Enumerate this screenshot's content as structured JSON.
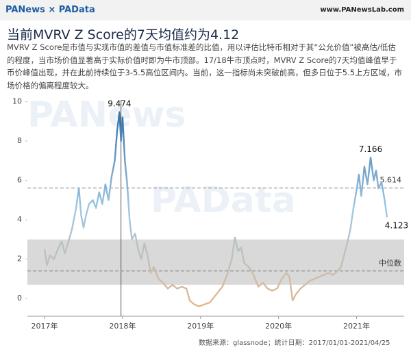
{
  "header": {
    "logo": "PANews × PAData",
    "site": "www.PANewsLab.com"
  },
  "chart_data": {
    "type": "line",
    "title": "当前MVRV Z Score的7天均值约为4.12",
    "subtitle": "MVRV Z Score是市值与实现市值的差值与市值标准差的比值，用以评估比特币相对于其“公允价值”被高估/低估的程度，当市场价值显著高于实际价值时即为牛市顶部。17/18牛市顶点时，MVRV Z Score的7天均值峰值早于币价峰值出现，并在此前持续位于3-5.5高位区间内。当前，这一指标尚未突破前高，但多日位于5.5上方区域，市场价格的偏离程度较大。",
    "watermarks": [
      "PANews",
      "PAData"
    ],
    "source": "数据来源：glassnode；统计日期：2017/01/01-2021/04/25",
    "x": [
      2017.0,
      2017.03,
      2017.07,
      2017.12,
      2017.17,
      2017.22,
      2017.26,
      2017.3,
      2017.35,
      2017.4,
      2017.44,
      2017.47,
      2017.5,
      2017.53,
      2017.57,
      2017.62,
      2017.66,
      2017.7,
      2017.74,
      2017.78,
      2017.82,
      2017.86,
      2017.9,
      2017.93,
      2017.96,
      2017.98,
      2018.0,
      2018.03,
      2018.06,
      2018.09,
      2018.12,
      2018.16,
      2018.2,
      2018.24,
      2018.28,
      2018.32,
      2018.36,
      2018.4,
      2018.46,
      2018.52,
      2018.58,
      2018.64,
      2018.7,
      2018.76,
      2018.82,
      2018.86,
      2018.92,
      2018.98,
      2019.05,
      2019.12,
      2019.2,
      2019.28,
      2019.34,
      2019.4,
      2019.44,
      2019.48,
      2019.52,
      2019.56,
      2019.62,
      2019.68,
      2019.74,
      2019.8,
      2019.86,
      2019.92,
      2019.98,
      2020.04,
      2020.1,
      2020.14,
      2020.18,
      2020.22,
      2020.28,
      2020.34,
      2020.4,
      2020.46,
      2020.52,
      2020.58,
      2020.64,
      2020.7,
      2020.76,
      2020.8,
      2020.84,
      2020.88,
      2020.92,
      2020.96,
      2021.0,
      2021.03,
      2021.06,
      2021.1,
      2021.14,
      2021.18,
      2021.22,
      2021.25,
      2021.28,
      2021.32,
      2021.36,
      2021.39
    ],
    "series": [
      {
        "name": "MVRV Z Score",
        "values": [
          2.5,
          1.7,
          2.2,
          2.0,
          2.5,
          2.9,
          2.3,
          2.8,
          3.5,
          4.5,
          5.6,
          4.2,
          3.6,
          4.2,
          4.8,
          5.0,
          4.6,
          5.4,
          4.8,
          5.8,
          5.0,
          6.2,
          7.0,
          8.5,
          9.474,
          8.0,
          9.2,
          7.0,
          5.8,
          4.0,
          3.0,
          3.3,
          2.5,
          2.0,
          2.8,
          2.2,
          1.3,
          1.6,
          1.0,
          0.8,
          0.5,
          0.7,
          0.5,
          0.6,
          0.5,
          -0.1,
          -0.3,
          -0.4,
          -0.3,
          -0.2,
          0.2,
          0.6,
          1.2,
          2.0,
          3.1,
          2.4,
          2.6,
          1.8,
          1.6,
          1.2,
          0.6,
          0.8,
          0.5,
          0.4,
          0.5,
          1.0,
          1.3,
          1.1,
          -0.1,
          0.2,
          0.5,
          0.7,
          0.9,
          1.0,
          1.1,
          1.2,
          1.3,
          1.2,
          1.4,
          1.6,
          2.2,
          2.8,
          3.5,
          4.6,
          5.5,
          6.3,
          5.2,
          6.7,
          5.8,
          7.166,
          6.0,
          6.5,
          5.6,
          5.9,
          5.0,
          4.123
        ]
      }
    ],
    "color_scale": [
      "#2a67a3",
      "#9fc8e4",
      "#e8b688"
    ],
    "xlim": [
      2016.78,
      2021.61
    ],
    "xticks": [
      {
        "value": 2017,
        "label": "2017年"
      },
      {
        "value": 2018,
        "label": "2018年"
      },
      {
        "value": 2019,
        "label": "2019年"
      },
      {
        "value": 2020,
        "label": "2020年"
      },
      {
        "value": 2021,
        "label": "2021年"
      }
    ],
    "ylim": [
      -0.9,
      10.3
    ],
    "yticks": [
      0,
      2,
      4,
      6,
      8,
      10
    ],
    "band": [
      0.7,
      3.0
    ],
    "vline": 2017.98,
    "reference_lines": [
      {
        "value": 5.614,
        "label": "5.614"
      },
      {
        "value": 1.4,
        "label": "中位数"
      }
    ],
    "annotations": [
      {
        "x": 2017.96,
        "y": 9.474,
        "label": "9.474"
      },
      {
        "x": 2021.18,
        "y": 7.166,
        "label": "7.166"
      },
      {
        "x": 2021.39,
        "y": 4.123,
        "label": "4.123"
      }
    ]
  }
}
